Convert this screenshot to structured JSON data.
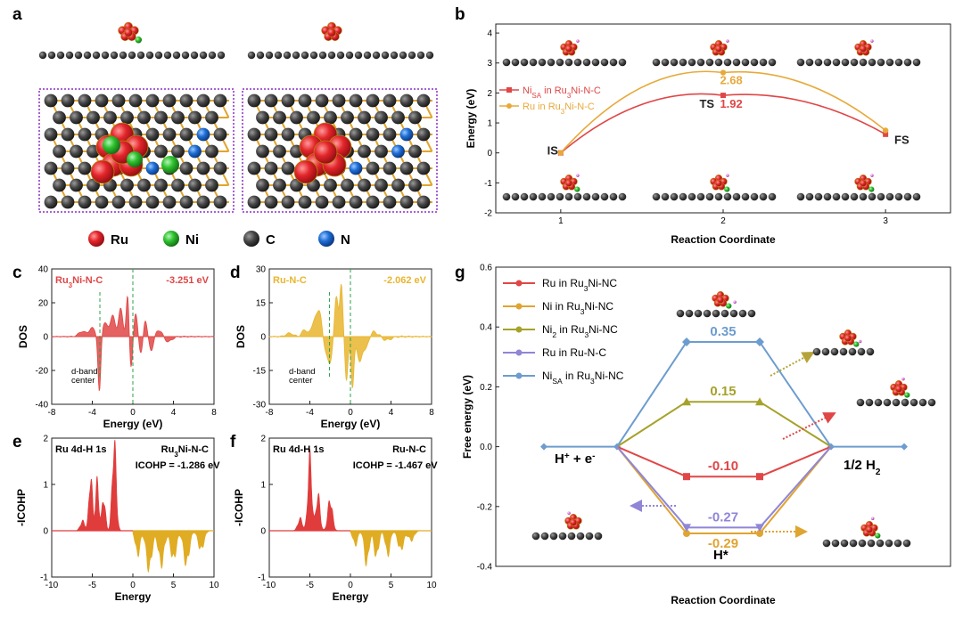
{
  "panel_labels": {
    "a": "a",
    "b": "b",
    "c": "c",
    "d": "d",
    "e": "e",
    "f": "f",
    "g": "g"
  },
  "panel_a": {
    "legend": [
      {
        "label": "Ru",
        "color": "#e3262b"
      },
      {
        "label": "Ni",
        "color": "#2ec22e"
      },
      {
        "label": "C",
        "color": "#4a4a4a"
      },
      {
        "label": "N",
        "color": "#1f6fd6"
      }
    ]
  },
  "chart_data": [
    {
      "id": "b",
      "type": "line",
      "xlabel": "Reaction Coordinate",
      "ylabel": "Energy (eV)",
      "xlim": [
        0.6,
        3.4
      ],
      "ylim": [
        -2,
        4.3
      ],
      "xticks": [
        1,
        2,
        3
      ],
      "yticks": [
        -2,
        -1,
        0,
        1,
        2,
        3,
        4
      ],
      "series": [
        {
          "name": "Ni",
          "sub": "SA",
          "name_rest": " in Ru",
          "sub2": "3",
          "name_end": "Ni-N-C",
          "color": "#e04646",
          "marker": "square",
          "x": [
            1,
            2,
            3
          ],
          "y": [
            0,
            1.92,
            0.62
          ]
        },
        {
          "name": "Ru in Ru",
          "sub": "3",
          "name_rest": "Ni-N-C",
          "sub2": "",
          "name_end": "",
          "color": "#e8a93a",
          "marker": "circle",
          "x": [
            1,
            2,
            3
          ],
          "y": [
            0,
            2.68,
            0.75
          ]
        }
      ],
      "annotations": [
        {
          "text": "IS",
          "x": 0.95,
          "y": -0.05,
          "color": "#222"
        },
        {
          "text": "TS",
          "x": 1.9,
          "y": 1.5,
          "color": "#222"
        },
        {
          "text": "1.92",
          "x": 2.05,
          "y": 1.5,
          "color": "#e04646"
        },
        {
          "text": "2.68",
          "x": 2.05,
          "y": 2.3,
          "color": "#e8a93a"
        },
        {
          "text": "FS",
          "x": 3.1,
          "y": 0.3,
          "color": "#222"
        }
      ]
    },
    {
      "id": "c",
      "type": "area",
      "xlabel": "Energy (eV)",
      "ylabel": "DOS",
      "xlim": [
        -8,
        8
      ],
      "ylim": [
        -40,
        40
      ],
      "xticks": [
        -8,
        -4,
        0,
        4,
        8
      ],
      "yticks": [
        -40,
        -20,
        0,
        20,
        40
      ],
      "label": "Ru",
      "label_sub": "3",
      "label_rest": "Ni-N-C",
      "value": "-3.251 eV",
      "color": "#e04646",
      "dband_center": -3.251,
      "dband_label": [
        "d-band",
        "center"
      ],
      "peaks": [
        [
          -5,
          3,
          0.5
        ],
        [
          -4,
          5,
          0.45
        ],
        [
          -3.3,
          -35,
          0.2
        ],
        [
          -2.8,
          8,
          0.4
        ],
        [
          -2,
          12,
          0.35
        ],
        [
          -1.2,
          16,
          0.3
        ],
        [
          -0.5,
          27,
          0.2
        ],
        [
          -0.2,
          -20,
          0.25
        ],
        [
          0.3,
          14,
          0.3
        ],
        [
          0.8,
          -12,
          0.3
        ],
        [
          1.2,
          12,
          0.25
        ],
        [
          1.8,
          -8,
          0.3
        ],
        [
          2.6,
          4,
          0.4
        ],
        [
          3.5,
          -3,
          0.5
        ]
      ]
    },
    {
      "id": "d",
      "type": "area",
      "xlabel": "Energy (eV)",
      "ylabel": "DOS",
      "xlim": [
        -8,
        8
      ],
      "ylim": [
        -30,
        30
      ],
      "xticks": [
        -8,
        -4,
        0,
        4,
        8
      ],
      "yticks": [
        -30,
        -15,
        0,
        15,
        30
      ],
      "label": "Ru-N-C",
      "label_sub": "",
      "label_rest": "",
      "value": "-2.062 eV",
      "color": "#e8b52e",
      "dband_center": -2.062,
      "dband_label": [
        "d-band",
        "center"
      ],
      "peaks": [
        [
          -6,
          1.5,
          0.5
        ],
        [
          -4.5,
          3,
          0.4
        ],
        [
          -3.5,
          8,
          0.4
        ],
        [
          -3,
          10,
          0.3
        ],
        [
          -2.5,
          -6,
          0.3
        ],
        [
          -2,
          -12,
          0.3
        ],
        [
          -1.4,
          18,
          0.25
        ],
        [
          -0.9,
          24,
          0.2
        ],
        [
          -0.4,
          -20,
          0.2
        ],
        [
          0.2,
          -24,
          0.2
        ],
        [
          0.9,
          -12,
          0.3
        ],
        [
          1.5,
          -6,
          0.3
        ],
        [
          2.4,
          2,
          0.5
        ],
        [
          3.6,
          -1.5,
          0.6
        ]
      ]
    },
    {
      "id": "e",
      "type": "area",
      "xlabel": "Energy",
      "ylabel": "-ICOHP",
      "xlim": [
        -10,
        10
      ],
      "ylim": [
        -1,
        2
      ],
      "xticks": [
        -10,
        -5,
        0,
        5,
        10
      ],
      "yticks": [
        -1,
        0,
        1,
        2
      ],
      "label_left": "Ru 4d-H 1s",
      "label_right": "Ru",
      "label_right_sub": "3",
      "label_right_rest": "Ni-N-C",
      "icohp": "ICOHP = -1.286 eV",
      "pos_color": "#e03c3c",
      "neg_color": "#e0ac23",
      "pos_peaks": [
        [
          -5.2,
          1.15,
          0.3
        ],
        [
          -4.4,
          1.0,
          0.3
        ],
        [
          -3.6,
          0.7,
          0.3
        ],
        [
          -2.3,
          1.85,
          0.35
        ],
        [
          -6.2,
          0.2,
          0.4
        ]
      ],
      "neg_peaks": [
        [
          0.6,
          -0.5,
          0.4
        ],
        [
          2.0,
          -0.8,
          0.5
        ],
        [
          3.5,
          -0.7,
          0.5
        ],
        [
          5.0,
          -0.6,
          0.5
        ],
        [
          6.6,
          -0.7,
          0.5
        ],
        [
          8.4,
          -0.4,
          0.5
        ]
      ]
    },
    {
      "id": "f",
      "type": "area",
      "xlabel": "Energy",
      "ylabel": "-ICOHP",
      "xlim": [
        -10,
        10
      ],
      "ylim": [
        -1,
        2
      ],
      "xticks": [
        -10,
        -5,
        0,
        5,
        10
      ],
      "yticks": [
        -1,
        0,
        1,
        2
      ],
      "label_left": "Ru 4d-H 1s",
      "label_right": "Ru-N-C",
      "label_right_sub": "",
      "label_right_rest": "",
      "icohp": "ICOHP = -1.467 eV",
      "pos_color": "#e03c3c",
      "neg_color": "#e0ac23",
      "pos_peaks": [
        [
          -5.0,
          1.5,
          0.35
        ],
        [
          -4.0,
          0.75,
          0.35
        ],
        [
          -2.5,
          0.65,
          0.4
        ],
        [
          -6.2,
          0.25,
          0.4
        ]
      ],
      "neg_peaks": [
        [
          0.6,
          -0.3,
          0.4
        ],
        [
          2.0,
          -0.7,
          0.4
        ],
        [
          3.2,
          -0.55,
          0.4
        ],
        [
          4.6,
          -0.5,
          0.4
        ],
        [
          6.2,
          -0.4,
          0.5
        ],
        [
          7.5,
          -0.2,
          0.5
        ]
      ]
    },
    {
      "id": "g",
      "type": "line",
      "xlabel": "Reaction Coordinate",
      "ylabel": "Free energy (eV)",
      "ylim": [
        -0.4,
        0.6
      ],
      "yticks": [
        -0.4,
        -0.2,
        0.0,
        0.2,
        0.4,
        0.6
      ],
      "ytick_labels": [
        "-0.4",
        "-0.2",
        "0.0",
        "0.2",
        "0.4",
        "0.6"
      ],
      "states": [
        "H+ + e-",
        "H*",
        "1/2 H2"
      ],
      "series": [
        {
          "name": "Ru in Ru",
          "sub": "3",
          "name_rest": "Ni-NC",
          "color": "#e04646",
          "marker": "square",
          "value": -0.1,
          "label": "-0.10"
        },
        {
          "name": "Ni in Ru",
          "sub": "3",
          "name_rest": "Ni-NC",
          "color": "#e0a431",
          "marker": "circle",
          "value": -0.29,
          "label": "-0.29"
        },
        {
          "name": "Ni",
          "sub": "2",
          "name_rest": " in Ru",
          "sub2": "3",
          "name_end": "Ni-NC",
          "color": "#a6a22a",
          "marker": "triangle",
          "value": 0.15,
          "label": "0.15"
        },
        {
          "name": "Ru in Ru-N-C",
          "sub": "",
          "name_rest": "",
          "color": "#8f86d6",
          "marker": "triangle-down",
          "value": -0.27,
          "label": "-0.27"
        },
        {
          "name": "Ni",
          "sub": "SA",
          "name_rest": " in Ru",
          "sub2": "3",
          "name_end": "Ni-NC",
          "color": "#6d9ccf",
          "marker": "diamond",
          "value": 0.35,
          "label": "0.35"
        }
      ],
      "state_labels": {
        "h_plus": "H",
        "h_plus_sup": "+",
        "plus": " + e",
        "e_sup": "-",
        "h_star": "H*",
        "half": "1/2 H",
        "half_sub": "2"
      }
    }
  ]
}
